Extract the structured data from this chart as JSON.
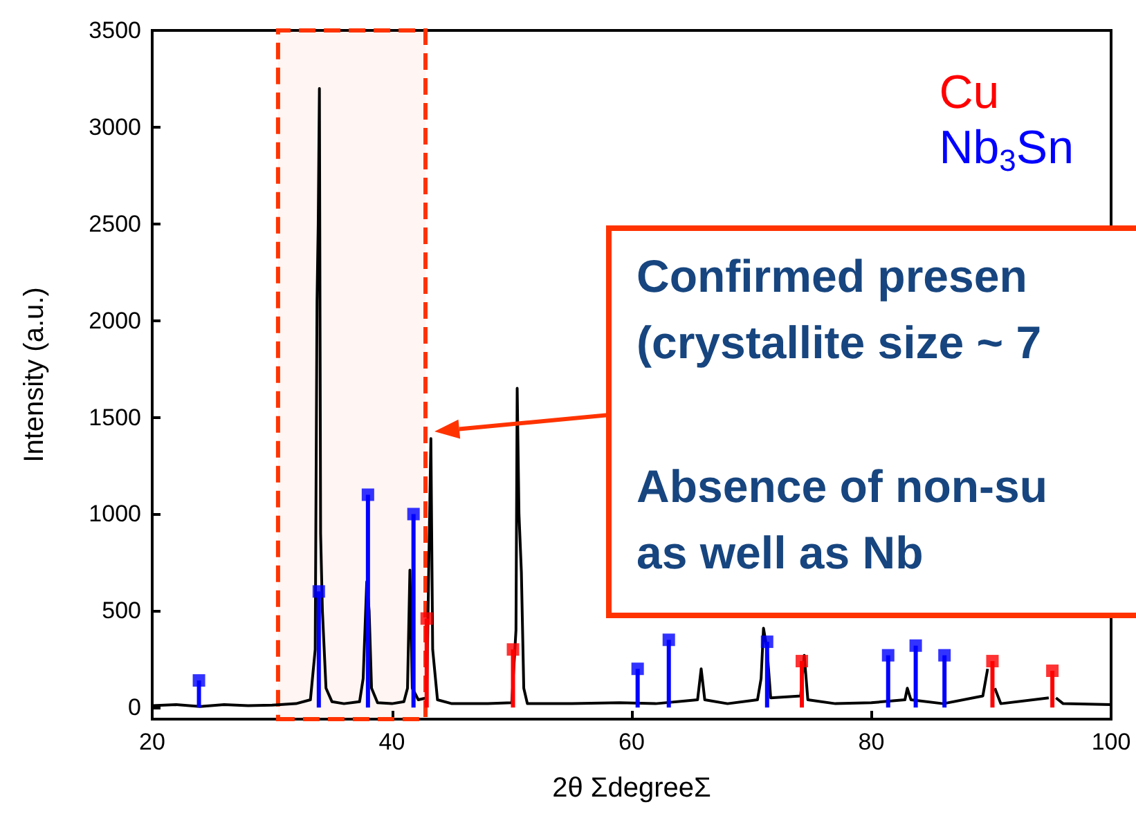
{
  "chart_data": {
    "type": "line",
    "xlabel": "2θ ΣdegreeΣ",
    "ylabel": "Intensity (a.u.)",
    "xlim": [
      20,
      100
    ],
    "xticks": [
      20,
      40,
      60,
      80,
      100
    ],
    "ylim": [
      -60,
      3500
    ],
    "yticks": [
      0,
      500,
      1000,
      1500,
      2000,
      2500,
      3000,
      3500
    ],
    "grid": false,
    "legend": "top right",
    "marker": "square",
    "series": [
      {
        "color": "#000000",
        "marker": "none",
        "line_style": "solid",
        "x": [
          20,
          22,
          24,
          26,
          28,
          30,
          32,
          33.2,
          33.6,
          33.75,
          33.85,
          33.95,
          34.05,
          34.2,
          34.5,
          35,
          36,
          37.3,
          37.6,
          37.9,
          38.1,
          38.3,
          38.8,
          40,
          41,
          41.3,
          41.5,
          41.7,
          42.2,
          42.9,
          43.1,
          43.25,
          43.4,
          43.8,
          45,
          48,
          50,
          50.35,
          50.45,
          50.6,
          50.8,
          51,
          51.3,
          55,
          59,
          62,
          65.5,
          65.8,
          66.1,
          68,
          70.5,
          70.8,
          71,
          71.3,
          71.6,
          74.1,
          74.4,
          74.7,
          77,
          80,
          82.8,
          83,
          83.3,
          86,
          89.3,
          89.7,
          90,
          90.3,
          90.8,
          94.8,
          95.1,
          95.4,
          96,
          100
        ],
        "values": [
          10,
          15,
          5,
          15,
          10,
          12,
          20,
          40,
          300,
          2100,
          2500,
          3200,
          900,
          500,
          100,
          30,
          20,
          30,
          150,
          650,
          500,
          100,
          25,
          20,
          30,
          100,
          710,
          100,
          40,
          50,
          830,
          1390,
          300,
          40,
          20,
          20,
          25,
          400,
          1650,
          1000,
          700,
          100,
          20,
          20,
          25,
          20,
          40,
          200,
          40,
          20,
          40,
          150,
          410,
          300,
          50,
          60,
          270,
          40,
          20,
          25,
          40,
          100,
          40,
          20,
          60,
          200,
          null,
          100,
          20,
          50,
          null,
          50,
          20,
          15
        ]
      },
      {
        "type": "lollipop",
        "name": "Cu",
        "color": "#ff0000",
        "x": [
          42.9,
          50.1,
          74.2,
          90.1,
          95.1
        ],
        "values": [
          460,
          300,
          240,
          240,
          190
        ]
      },
      {
        "type": "lollipop",
        "name": "Nb$_{3}$Sn",
        "color": "#0000ff",
        "x": [
          23.9,
          33.9,
          38,
          41.8,
          60.5,
          63.1,
          65.9,
          71.3,
          81.4,
          83.7,
          86.1
        ],
        "values": [
          140,
          600,
          1100,
          1000,
          200,
          350,
          null,
          340,
          270,
          320,
          270
        ]
      }
    ],
    "bands": [
      {
        "axis": "x",
        "from": 30.5,
        "to": 42.8,
        "color": "#ff3300"
      }
    ],
    "annotations": [
      "Confirmed presen",
      "(crystallite size ~ 7",
      "Absence of non-su",
      "as well as Nb"
    ]
  }
}
